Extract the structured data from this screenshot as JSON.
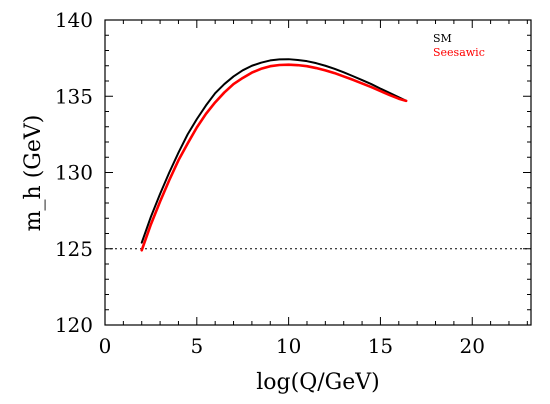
{
  "chart_data": {
    "type": "line",
    "xlabel": "log(Q/GeV)",
    "ylabel": "m_h (GeV)",
    "xlim": [
      0,
      23.2
    ],
    "ylim": [
      120,
      140
    ],
    "xticks": [
      0,
      5,
      10,
      15,
      20
    ],
    "yticks": [
      120,
      125,
      130,
      135,
      140
    ],
    "x_minor_step": 1,
    "y_minor_step": 1,
    "grid": false,
    "legend_position": "top-right",
    "reference_line": {
      "y": 125,
      "style": "dotted",
      "color": "#000000"
    },
    "series": [
      {
        "name": "SM",
        "color": "#000000",
        "x": [
          2.0,
          2.5,
          3,
          3.5,
          4,
          4.5,
          5,
          5.5,
          6,
          6.5,
          7,
          7.5,
          8,
          8.5,
          9,
          9.5,
          10,
          10.5,
          11,
          11.5,
          12,
          12.5,
          13,
          13.5,
          14,
          14.5,
          15,
          15.5,
          16,
          16.4
        ],
        "values": [
          125.4,
          127.1,
          128.6,
          130.0,
          131.3,
          132.5,
          133.5,
          134.4,
          135.2,
          135.8,
          136.3,
          136.7,
          137.0,
          137.2,
          137.35,
          137.42,
          137.43,
          137.38,
          137.3,
          137.17,
          137.0,
          136.8,
          136.57,
          136.32,
          136.06,
          135.8,
          135.5,
          135.22,
          134.93,
          134.7
        ]
      },
      {
        "name": "Seesawic",
        "color": "#ff0000",
        "x": [
          2.0,
          2.5,
          3,
          3.5,
          4,
          4.5,
          5,
          5.5,
          6,
          6.5,
          7,
          7.5,
          8,
          8.5,
          9,
          9.5,
          10,
          10.5,
          11,
          11.5,
          12,
          12.5,
          13,
          13.5,
          14,
          14.5,
          15,
          15.5,
          16,
          16.4
        ],
        "values": [
          124.9,
          126.6,
          128.1,
          129.5,
          130.8,
          131.9,
          132.95,
          133.85,
          134.6,
          135.25,
          135.8,
          136.2,
          136.55,
          136.8,
          136.97,
          137.05,
          137.07,
          137.04,
          136.97,
          136.85,
          136.7,
          136.52,
          136.3,
          136.08,
          135.84,
          135.6,
          135.34,
          135.08,
          134.84,
          134.7
        ]
      }
    ]
  }
}
